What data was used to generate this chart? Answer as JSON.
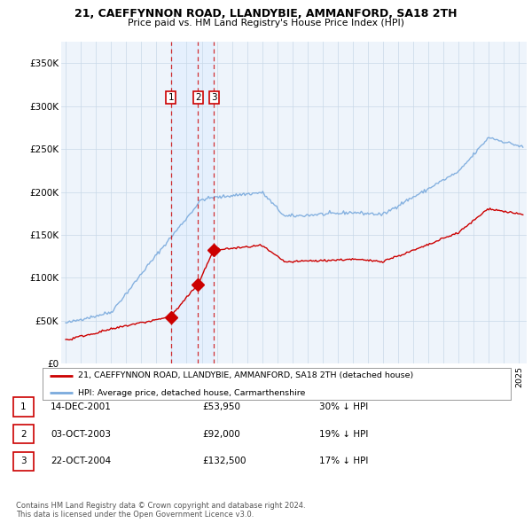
{
  "title": "21, CAEFFYNNON ROAD, LLANDYBIE, AMMANFORD, SA18 2TH",
  "subtitle": "Price paid vs. HM Land Registry's House Price Index (HPI)",
  "xlim_start": 1994.7,
  "xlim_end": 2025.5,
  "ylim": [
    0,
    375000
  ],
  "yticks": [
    0,
    50000,
    100000,
    150000,
    200000,
    250000,
    300000,
    350000
  ],
  "ytick_labels": [
    "£0",
    "£50K",
    "£100K",
    "£150K",
    "£200K",
    "£250K",
    "£300K",
    "£350K"
  ],
  "sale_dates": [
    2001.96,
    2003.75,
    2004.81
  ],
  "sale_prices": [
    53950,
    92000,
    132500
  ],
  "sale_labels": [
    "1",
    "2",
    "3"
  ],
  "vline_dates": [
    2001.96,
    2003.75,
    2004.81
  ],
  "highlight_shade_color": "#ddeeff",
  "legend_entries": [
    "21, CAEFFYNNON ROAD, LLANDYBIE, AMMANFORD, SA18 2TH (detached house)",
    "HPI: Average price, detached house, Carmarthenshire"
  ],
  "property_line_color": "#cc0000",
  "hpi_line_color": "#7aaadd",
  "table_rows": [
    [
      "1",
      "14-DEC-2001",
      "£53,950",
      "30% ↓ HPI"
    ],
    [
      "2",
      "03-OCT-2003",
      "£92,000",
      "19% ↓ HPI"
    ],
    [
      "3",
      "22-OCT-2004",
      "£132,500",
      "17% ↓ HPI"
    ]
  ],
  "footnote": "Contains HM Land Registry data © Crown copyright and database right 2024.\nThis data is licensed under the Open Government Licence v3.0.",
  "plot_bg_color": "#eef4fb",
  "figure_bg_color": "#ffffff",
  "grid_color": "#c8d8e8"
}
